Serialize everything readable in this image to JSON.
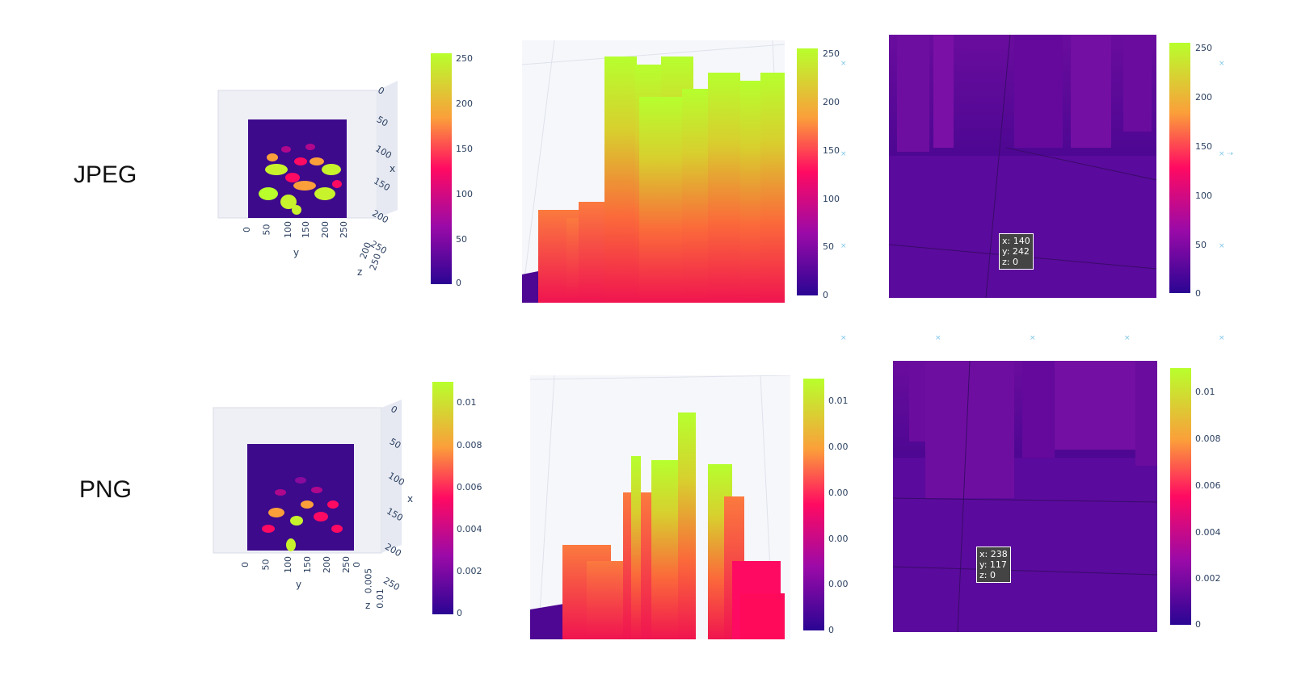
{
  "row_labels": {
    "jpeg": "JPEG",
    "png": "PNG"
  },
  "colors": {
    "dark": "#0d0887",
    "floor": "#5a0a9c",
    "mid": "#ff0a60",
    "orange": "#fb9f3a",
    "yellow": "#c8f22c",
    "top": "#b2ff2e"
  },
  "chart_data": [
    {
      "type": "surface",
      "panel": "jpeg-overview",
      "colorscale": "plasma",
      "colorbar_ticks": [
        "250",
        "200",
        "150",
        "100",
        "50",
        "0"
      ],
      "scene_ticks": {
        "x": [
          "0",
          "50",
          "100",
          "150",
          "200",
          "250"
        ],
        "y": [
          "0",
          "50",
          "100",
          "150",
          "200",
          "250"
        ],
        "z": [
          "200",
          "250"
        ]
      },
      "axis_titles": {
        "x": "x",
        "y": "y",
        "z": "z"
      }
    },
    {
      "type": "surface",
      "panel": "jpeg-zoom",
      "colorscale": "plasma",
      "colorbar_ticks": [
        "250",
        "200",
        "150",
        "100",
        "50",
        "0"
      ]
    },
    {
      "type": "surface",
      "panel": "jpeg-closeup",
      "colorscale": "plasma",
      "colorbar_ticks": [
        "250",
        "200",
        "150",
        "100",
        "50",
        "0"
      ],
      "hover": {
        "x": "x: 140",
        "y": "y: 242",
        "z": "z: 0"
      }
    },
    {
      "type": "surface",
      "panel": "png-overview",
      "colorscale": "plasma",
      "colorbar_ticks": [
        "0.01",
        "0.008",
        "0.006",
        "0.004",
        "0.002",
        "0"
      ],
      "scene_ticks": {
        "x": [
          "0",
          "50",
          "100",
          "150",
          "200",
          "250"
        ],
        "y": [
          "0",
          "50",
          "100",
          "150",
          "200",
          "250"
        ],
        "z": [
          "0",
          "0.005",
          "0.01"
        ]
      },
      "axis_titles": {
        "x": "x",
        "y": "y",
        "z": "z"
      }
    },
    {
      "type": "surface",
      "panel": "png-zoom",
      "colorscale": "plasma",
      "colorbar_ticks": [
        "0.01",
        "0.00",
        "0.00",
        "0.00",
        "0.00",
        "0"
      ]
    },
    {
      "type": "surface",
      "panel": "png-closeup",
      "colorscale": "plasma",
      "colorbar_ticks": [
        "0.01",
        "0.008",
        "0.006",
        "0.004",
        "0.002",
        "0"
      ],
      "hover": {
        "x": "x: 238",
        "y": "y: 117",
        "z": "z: 0"
      }
    }
  ]
}
